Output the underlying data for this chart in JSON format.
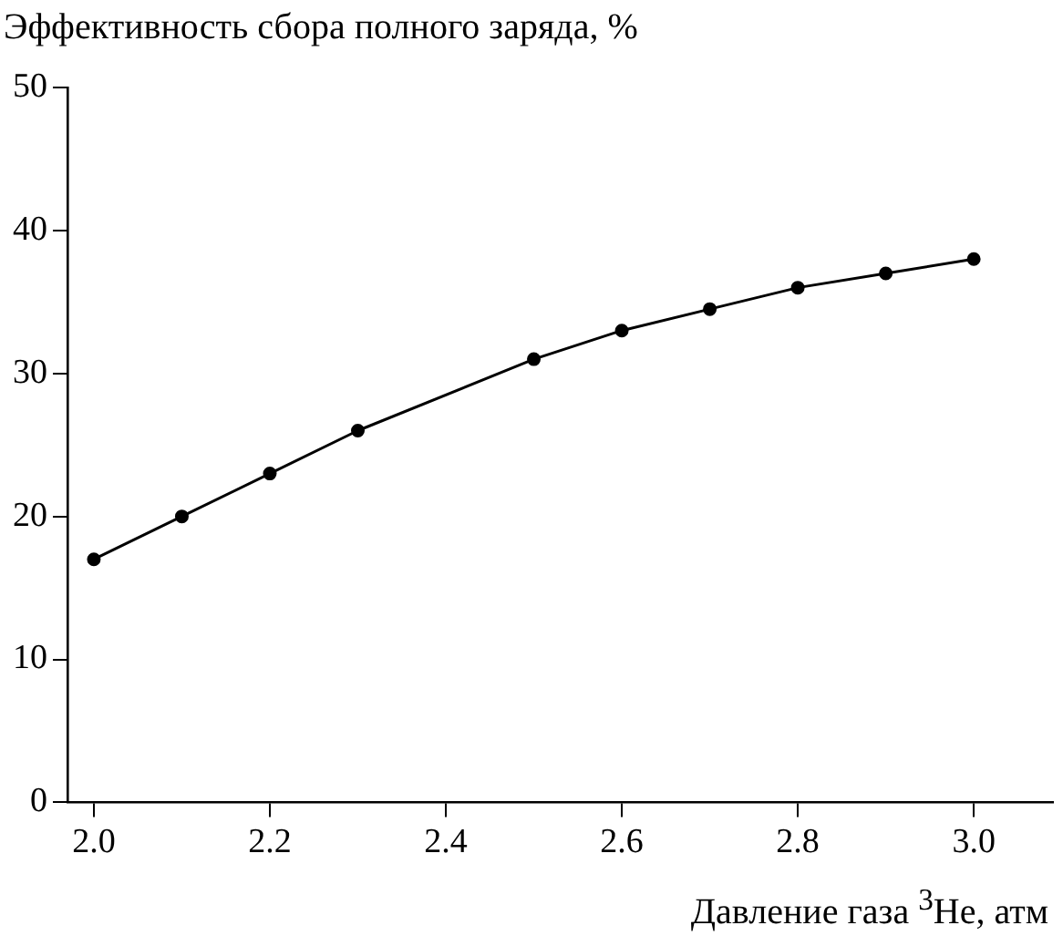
{
  "chart_data": {
    "type": "line",
    "ylabel": "Эффективность сбора полного заряда, %",
    "xlabel": "Давление газа $^{3}$He, атм",
    "x": [
      2.0,
      2.1,
      2.2,
      2.3,
      2.5,
      2.6,
      2.7,
      2.8,
      2.9,
      3.0
    ],
    "series": [
      {
        "color": "#000000",
        "values": [
          17,
          20,
          23,
          26,
          31,
          33,
          34.5,
          36,
          37,
          38
        ]
      }
    ],
    "xlim": [
      1.97,
      3.09
    ],
    "xticks": [
      {
        "value": 2,
        "label": "2.0"
      },
      {
        "value": 2.2,
        "label": "2.2"
      },
      {
        "value": 2.4,
        "label": "2.4"
      },
      {
        "value": 2.6,
        "label": "2.6"
      },
      {
        "value": 2.8,
        "label": "2.8"
      },
      {
        "value": 3,
        "label": "3.0"
      }
    ],
    "ylim": [
      0,
      50
    ],
    "yticks": [
      0,
      10,
      20,
      30,
      40,
      50
    ],
    "grid": false,
    "legend": false,
    "marker": "circle",
    "line_style": "solid"
  }
}
